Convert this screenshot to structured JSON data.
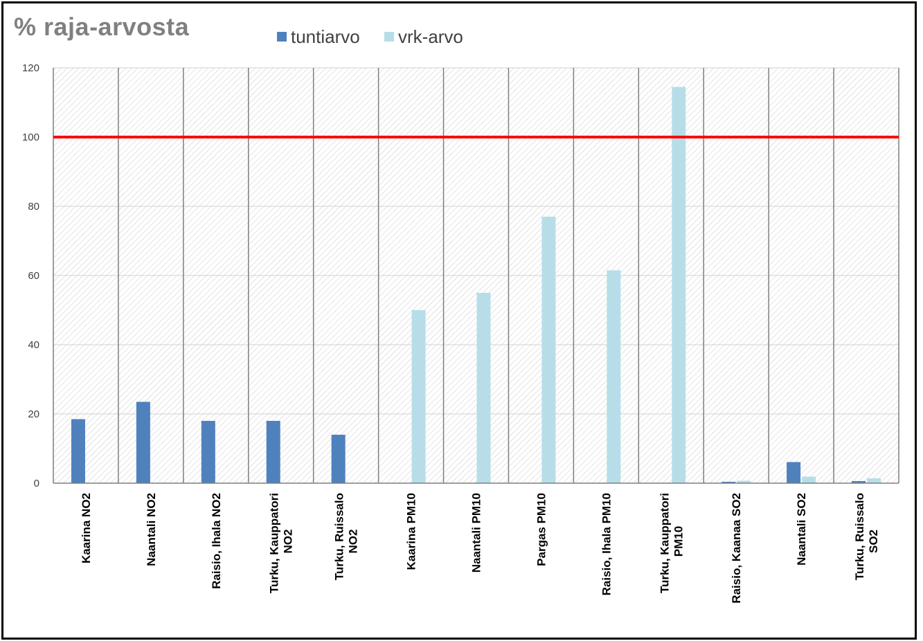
{
  "chart_data": {
    "type": "bar",
    "title": "% raja-arvosta",
    "xlabel": "",
    "ylabel": "",
    "ylim": [
      0,
      120
    ],
    "yticks": [
      0,
      20,
      40,
      60,
      80,
      100,
      120
    ],
    "grid": true,
    "legend_position": "top",
    "reference_line": {
      "value": 100,
      "color": "#FF0000"
    },
    "categories": [
      [
        "Kaarina NO2"
      ],
      [
        "Naantali NO2"
      ],
      [
        "Raisio, Ihala NO2"
      ],
      [
        "Turku, Kauppatori",
        "NO2"
      ],
      [
        "Turku, Ruissalo",
        "NO2"
      ],
      [
        "Kaarina PM10"
      ],
      [
        "Naantali PM10"
      ],
      [
        "Pargas PM10"
      ],
      [
        "Raisio, Ihala PM10"
      ],
      [
        "Turku, Kauppatori",
        "PM10"
      ],
      [
        "Raisio, Kaanaa SO2"
      ],
      [
        "Naantali SO2"
      ],
      [
        "Turku, Ruissalo",
        "SO2"
      ]
    ],
    "series": [
      {
        "name": "tuntiarvo",
        "color": "#4F81BD",
        "values": [
          18.5,
          23.5,
          18,
          18,
          14,
          0,
          0,
          0,
          0,
          0,
          0.4,
          6.1,
          0.6
        ]
      },
      {
        "name": "vrk-arvo",
        "color": "#B7DEE8",
        "values": [
          0,
          0,
          0,
          0,
          0,
          50,
          55,
          77,
          61.5,
          114.5,
          0.7,
          1.9,
          1.4
        ]
      }
    ]
  }
}
